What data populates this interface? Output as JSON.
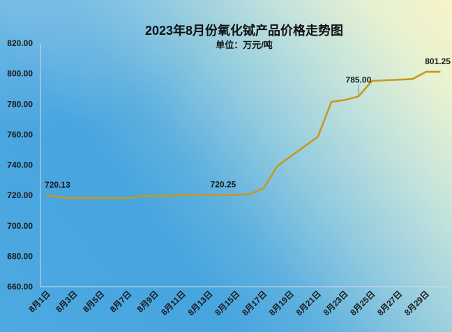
{
  "chart_data": {
    "type": "line",
    "title": "2023年8月份氧化铽产品价格走势图",
    "subtitle": "单位：万元/吨",
    "xlabel": "",
    "ylabel": "",
    "xlim": [
      0.5,
      30.5
    ],
    "ylim": [
      660,
      820
    ],
    "ytick_labels": [
      "660.00",
      "680.00",
      "700.00",
      "720.00",
      "740.00",
      "760.00",
      "780.00",
      "800.00",
      "820.00"
    ],
    "xtick_labels": [
      "8月1日",
      "8月3日",
      "8月5日",
      "8月7日",
      "8月9日",
      "8月11日",
      "8月13日",
      "8月15日",
      "8月17日",
      "8月19日",
      "8月21日",
      "8月23日",
      "8月25日",
      "8月27日",
      "8月29日"
    ],
    "series": [
      {
        "color": "#c49a1c",
        "x": [
          1,
          2,
          3,
          4,
          7,
          8,
          9,
          10,
          11,
          14,
          15,
          16,
          17,
          18,
          21,
          22,
          23,
          24,
          25,
          28,
          29,
          30
        ],
        "values": [
          720.13,
          718.63,
          718.25,
          718.25,
          718.13,
          719.63,
          719.63,
          719.75,
          720.25,
          720.25,
          720.25,
          721.0,
          724.75,
          739.25,
          758.5,
          781.5,
          782.75,
          785.0,
          795.25,
          796.5,
          801.25,
          801.25
        ]
      }
    ],
    "data_labels": [
      {
        "x": 1,
        "text": "720.13"
      },
      {
        "x": 14,
        "text": "720.25"
      },
      {
        "x": 24,
        "text": "785.00"
      },
      {
        "x": 30,
        "text": "801.25"
      }
    ],
    "grid": false,
    "legend": "none"
  }
}
